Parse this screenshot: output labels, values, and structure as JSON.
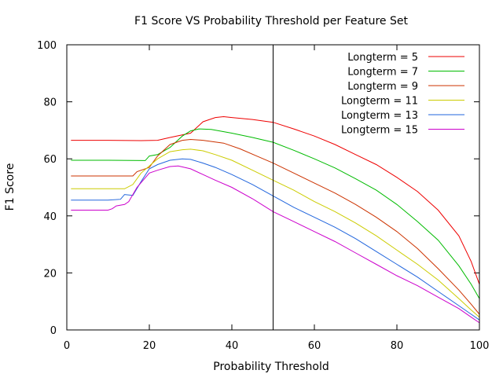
{
  "chart_data": {
    "type": "line",
    "title": "F1 Score VS Probability Threshold per Feature Set",
    "xlabel": "Probability Threshold",
    "ylabel": "F1 Score",
    "xlim": [
      0,
      100
    ],
    "ylim": [
      0,
      100
    ],
    "xticks": [
      0,
      20,
      40,
      60,
      80,
      100
    ],
    "yticks": [
      0,
      20,
      40,
      60,
      80,
      100
    ],
    "grid": false,
    "legend_position": "top-right",
    "vertical_marker_x": 50,
    "series": [
      {
        "name": "Longterm = 5",
        "color": "#ee0000",
        "points": [
          [
            1,
            66.5
          ],
          [
            10,
            66.5
          ],
          [
            18,
            66.4
          ],
          [
            22,
            66.5
          ],
          [
            25,
            67.5
          ],
          [
            30,
            69
          ],
          [
            33,
            73
          ],
          [
            36,
            74.5
          ],
          [
            38,
            74.8
          ],
          [
            40,
            74.5
          ],
          [
            45,
            73.8
          ],
          [
            50,
            72.8
          ],
          [
            55,
            70.5
          ],
          [
            60,
            68
          ],
          [
            65,
            65
          ],
          [
            70,
            61.5
          ],
          [
            75,
            58
          ],
          [
            80,
            53.5
          ],
          [
            85,
            48.5
          ],
          [
            90,
            42
          ],
          [
            95,
            33
          ],
          [
            98,
            24
          ],
          [
            100,
            16
          ]
        ]
      },
      {
        "name": "Longterm = 7",
        "color": "#00bb00",
        "points": [
          [
            1,
            59.5
          ],
          [
            10,
            59.5
          ],
          [
            19,
            59.4
          ],
          [
            20,
            61
          ],
          [
            22,
            61.5
          ],
          [
            25,
            64
          ],
          [
            28,
            68
          ],
          [
            30,
            69.8
          ],
          [
            32,
            70.5
          ],
          [
            35,
            70.3
          ],
          [
            40,
            69
          ],
          [
            45,
            67.5
          ],
          [
            50,
            65.8
          ],
          [
            55,
            63
          ],
          [
            60,
            60
          ],
          [
            65,
            56.8
          ],
          [
            70,
            53
          ],
          [
            75,
            49
          ],
          [
            80,
            44
          ],
          [
            85,
            38
          ],
          [
            90,
            31.5
          ],
          [
            95,
            22.5
          ],
          [
            98,
            16
          ],
          [
            100,
            11
          ]
        ]
      },
      {
        "name": "Longterm = 9",
        "color": "#cc3300",
        "points": [
          [
            1,
            54
          ],
          [
            10,
            54
          ],
          [
            16,
            54
          ],
          [
            17,
            55.5
          ],
          [
            20,
            57
          ],
          [
            22,
            61
          ],
          [
            25,
            65
          ],
          [
            28,
            66.5
          ],
          [
            30,
            66.8
          ],
          [
            33,
            66.5
          ],
          [
            38,
            65.5
          ],
          [
            42,
            63.5
          ],
          [
            46,
            61
          ],
          [
            50,
            58.5
          ],
          [
            55,
            55
          ],
          [
            60,
            51.5
          ],
          [
            65,
            48
          ],
          [
            70,
            44
          ],
          [
            75,
            39.5
          ],
          [
            80,
            34.5
          ],
          [
            85,
            28.5
          ],
          [
            90,
            21.5
          ],
          [
            95,
            14
          ],
          [
            98,
            9
          ],
          [
            100,
            5.5
          ]
        ]
      },
      {
        "name": "Longterm = 11",
        "color": "#cccc00",
        "points": [
          [
            1,
            49.5
          ],
          [
            10,
            49.5
          ],
          [
            14,
            49.5
          ],
          [
            16,
            51
          ],
          [
            18,
            55
          ],
          [
            20,
            57.5
          ],
          [
            22,
            60
          ],
          [
            25,
            62.5
          ],
          [
            28,
            63.2
          ],
          [
            30,
            63.4
          ],
          [
            33,
            62.8
          ],
          [
            36,
            61.5
          ],
          [
            40,
            59.5
          ],
          [
            45,
            56
          ],
          [
            50,
            52.5
          ],
          [
            55,
            49
          ],
          [
            60,
            45
          ],
          [
            65,
            41.5
          ],
          [
            70,
            37.5
          ],
          [
            75,
            33
          ],
          [
            80,
            28
          ],
          [
            85,
            23
          ],
          [
            90,
            17.5
          ],
          [
            95,
            11
          ],
          [
            98,
            7
          ],
          [
            100,
            4.5
          ]
        ]
      },
      {
        "name": "Longterm = 13",
        "color": "#2266dd",
        "points": [
          [
            1,
            45.5
          ],
          [
            10,
            45.5
          ],
          [
            13,
            45.8
          ],
          [
            14,
            47.5
          ],
          [
            16,
            47.2
          ],
          [
            18,
            52
          ],
          [
            20,
            56.5
          ],
          [
            22,
            58
          ],
          [
            25,
            59.5
          ],
          [
            28,
            60
          ],
          [
            30,
            59.8
          ],
          [
            33,
            58.5
          ],
          [
            36,
            57
          ],
          [
            40,
            54.5
          ],
          [
            45,
            51
          ],
          [
            50,
            47
          ],
          [
            55,
            43
          ],
          [
            60,
            39.5
          ],
          [
            65,
            36
          ],
          [
            70,
            32
          ],
          [
            75,
            27.5
          ],
          [
            80,
            23
          ],
          [
            85,
            18.5
          ],
          [
            90,
            13.5
          ],
          [
            95,
            8.5
          ],
          [
            98,
            5.5
          ],
          [
            100,
            3.5
          ]
        ]
      },
      {
        "name": "Longterm = 15",
        "color": "#cc00cc",
        "points": [
          [
            1,
            42
          ],
          [
            10,
            42
          ],
          [
            11,
            42.5
          ],
          [
            12,
            43.5
          ],
          [
            14,
            44
          ],
          [
            15,
            45
          ],
          [
            17,
            50
          ],
          [
            20,
            55
          ],
          [
            22,
            56
          ],
          [
            25,
            57.3
          ],
          [
            27,
            57.5
          ],
          [
            30,
            56.5
          ],
          [
            33,
            54.5
          ],
          [
            36,
            52.5
          ],
          [
            40,
            50
          ],
          [
            45,
            46
          ],
          [
            50,
            41.5
          ],
          [
            55,
            38
          ],
          [
            60,
            34.5
          ],
          [
            65,
            31
          ],
          [
            70,
            27
          ],
          [
            75,
            23
          ],
          [
            80,
            19
          ],
          [
            85,
            15.5
          ],
          [
            90,
            11.5
          ],
          [
            95,
            7.5
          ],
          [
            98,
            4.5
          ],
          [
            100,
            2.5
          ]
        ]
      }
    ]
  }
}
